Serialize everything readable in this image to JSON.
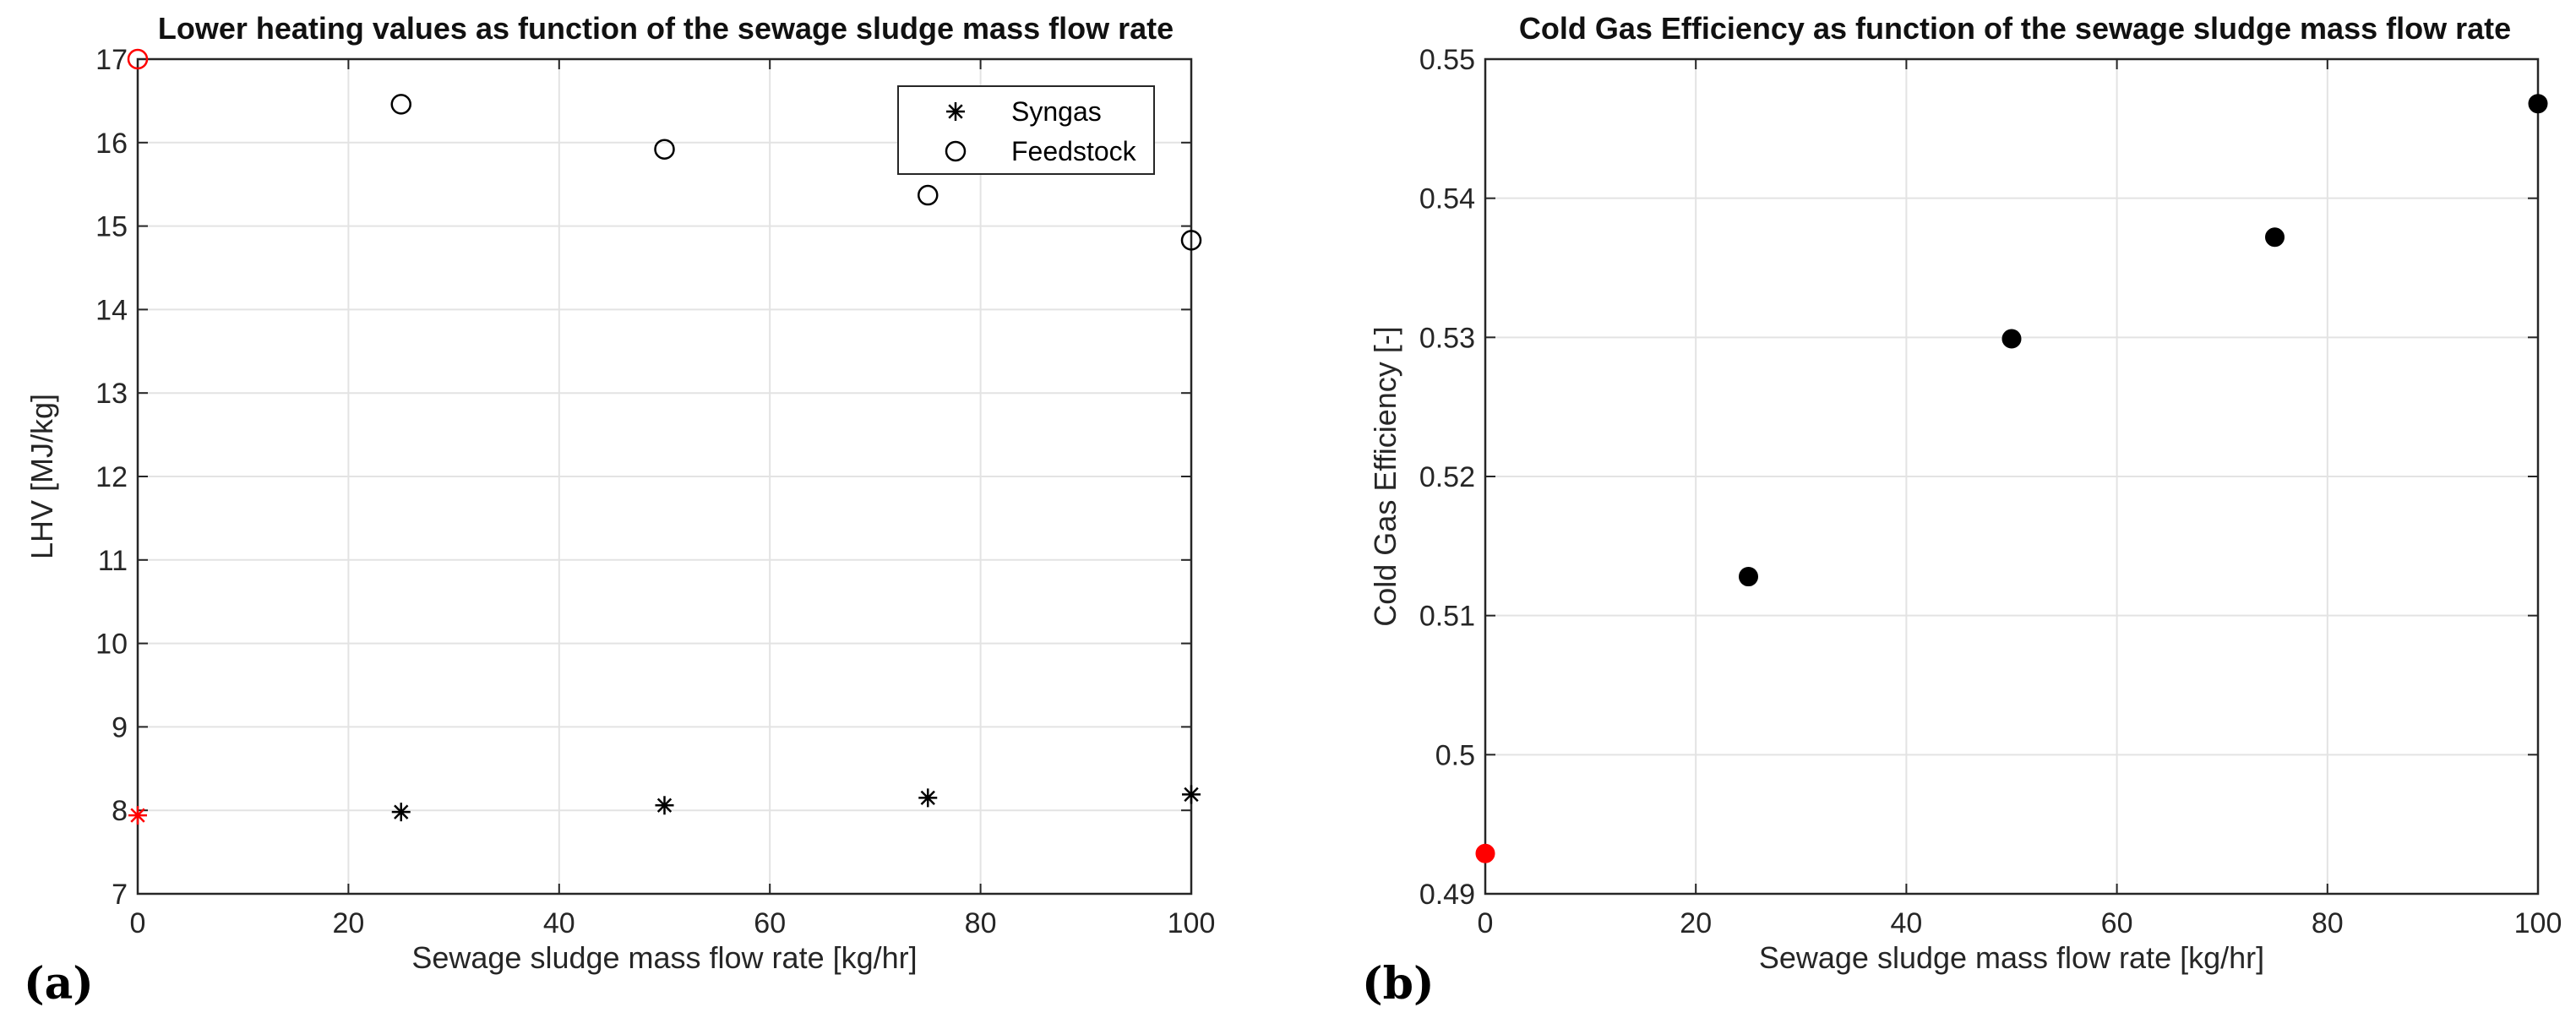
{
  "chart_data": [
    {
      "type": "scatter",
      "panel_label": "(a)",
      "title": "Lower heating values as function of the sewage sludge mass flow rate",
      "xlabel": "Sewage sludge mass flow rate [kg/hr]",
      "ylabel": "LHV [MJ/kg]",
      "xlim": [
        0,
        100
      ],
      "ylim": [
        7,
        17
      ],
      "xticks": [
        0,
        20,
        40,
        60,
        80,
        100
      ],
      "yticks": [
        7,
        8,
        9,
        10,
        11,
        12,
        13,
        14,
        15,
        16,
        17
      ],
      "grid": true,
      "legend_position": "top-right",
      "series": [
        {
          "name": "Syngas",
          "marker": "asterisk",
          "color": "#000000",
          "highlight_color": "#ff0000",
          "x": [
            0,
            25,
            50,
            75,
            100
          ],
          "y": [
            7.94,
            7.98,
            8.06,
            8.15,
            8.19
          ]
        },
        {
          "name": "Feedstock",
          "marker": "circle-open",
          "color": "#000000",
          "highlight_color": "#ff0000",
          "x": [
            0,
            25,
            50,
            75,
            100
          ],
          "y": [
            17.0,
            16.46,
            15.92,
            15.37,
            14.83
          ]
        }
      ]
    },
    {
      "type": "scatter",
      "panel_label": "(b)",
      "title": "Cold Gas Efficiency as function of the sewage sludge mass flow rate",
      "xlabel": "Sewage sludge mass flow rate [kg/hr]",
      "ylabel": "Cold Gas Efficiency [-]",
      "xlim": [
        0,
        100
      ],
      "ylim": [
        0.49,
        0.55
      ],
      "xticks": [
        0,
        20,
        40,
        60,
        80,
        100
      ],
      "yticks": [
        0.49,
        0.5,
        0.51,
        0.52,
        0.53,
        0.54,
        0.55
      ],
      "ytick_labels": [
        "0.49",
        "0.5",
        "0.51",
        "0.52",
        "0.53",
        "0.54",
        "0.55"
      ],
      "grid": true,
      "series": [
        {
          "name": "Cold Gas Efficiency",
          "marker": "circle-filled",
          "color": "#000000",
          "highlight_color": "#ff0000",
          "x": [
            0,
            25,
            50,
            75,
            100
          ],
          "y": [
            0.4929,
            0.5128,
            0.5299,
            0.5372,
            0.5468
          ]
        }
      ]
    }
  ]
}
